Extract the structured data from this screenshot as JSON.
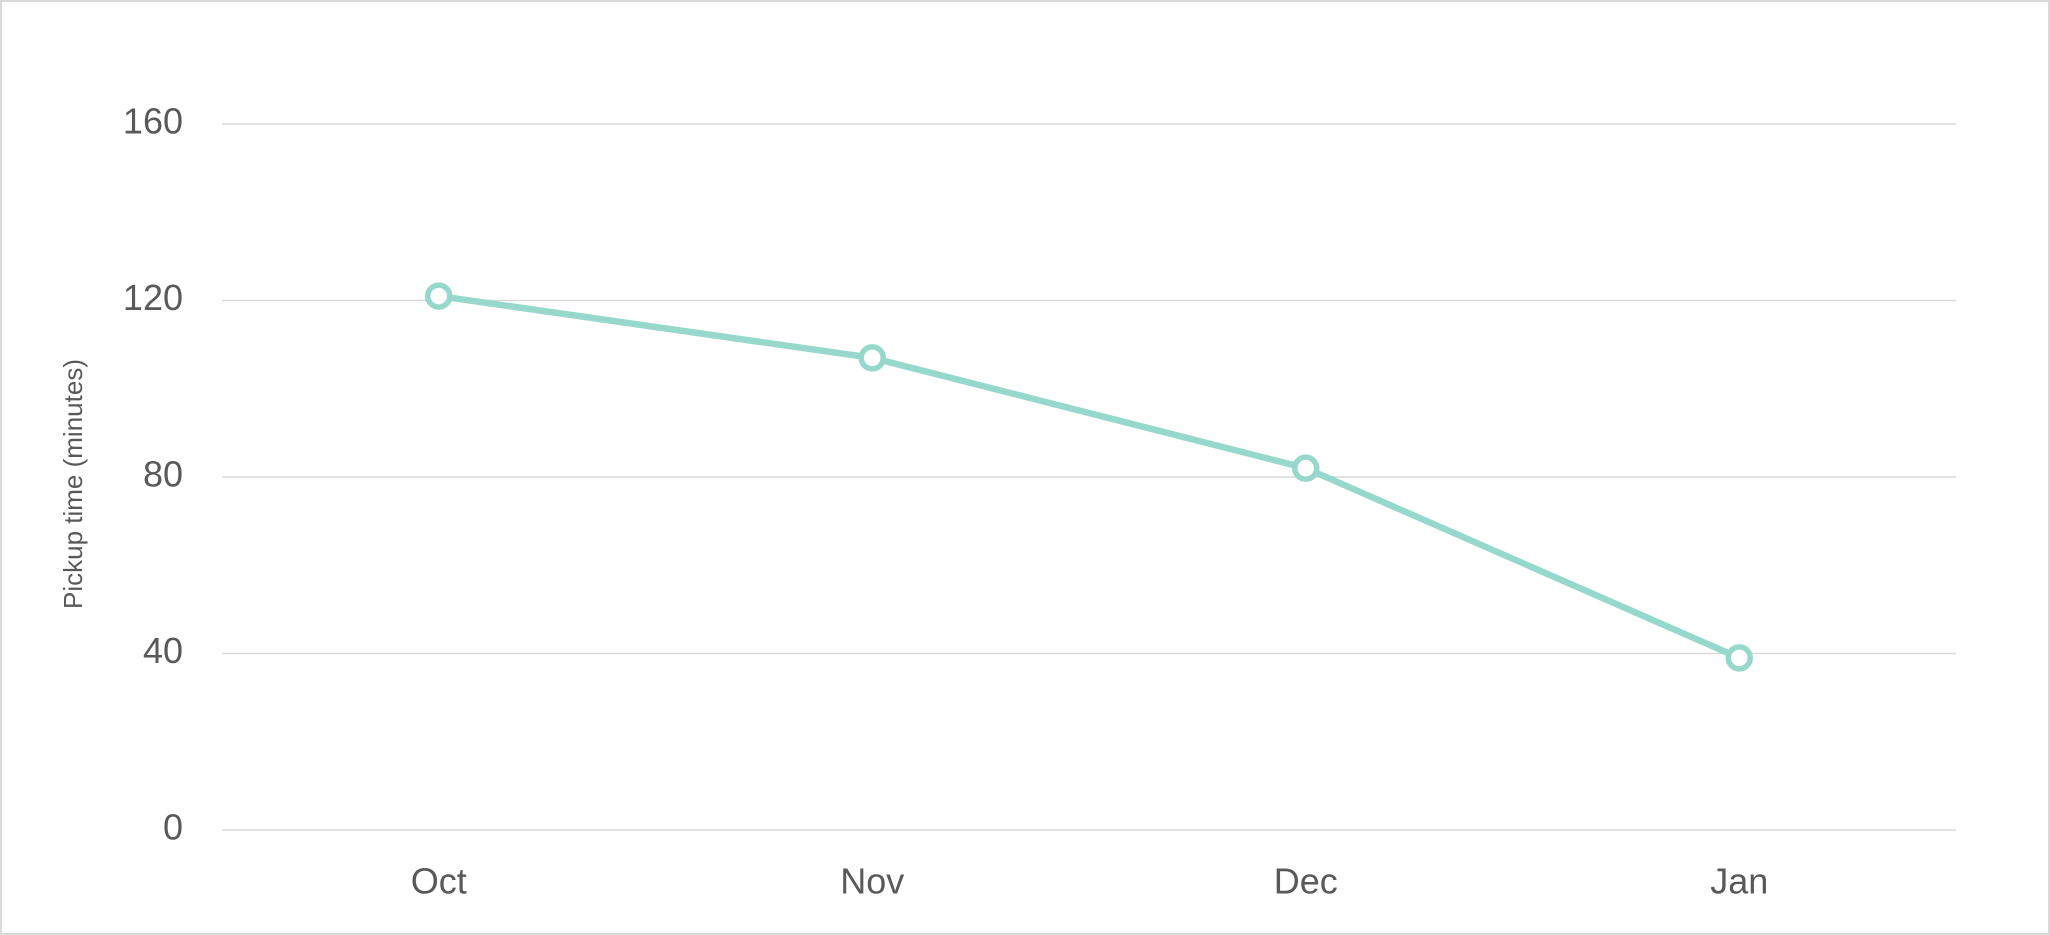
{
  "chart_data": {
    "type": "line",
    "y_label": "Pickup time (minutes)",
    "categories": [
      "Oct",
      "Nov",
      "Dec",
      "Jan"
    ],
    "series": [
      {
        "name": "Pickup time",
        "color": "#96d8cc",
        "values": [
          121,
          107,
          82,
          39
        ]
      }
    ],
    "ylim": [
      0,
      160
    ],
    "yticks": [
      0,
      40,
      80,
      120,
      160
    ],
    "grid": true
  }
}
